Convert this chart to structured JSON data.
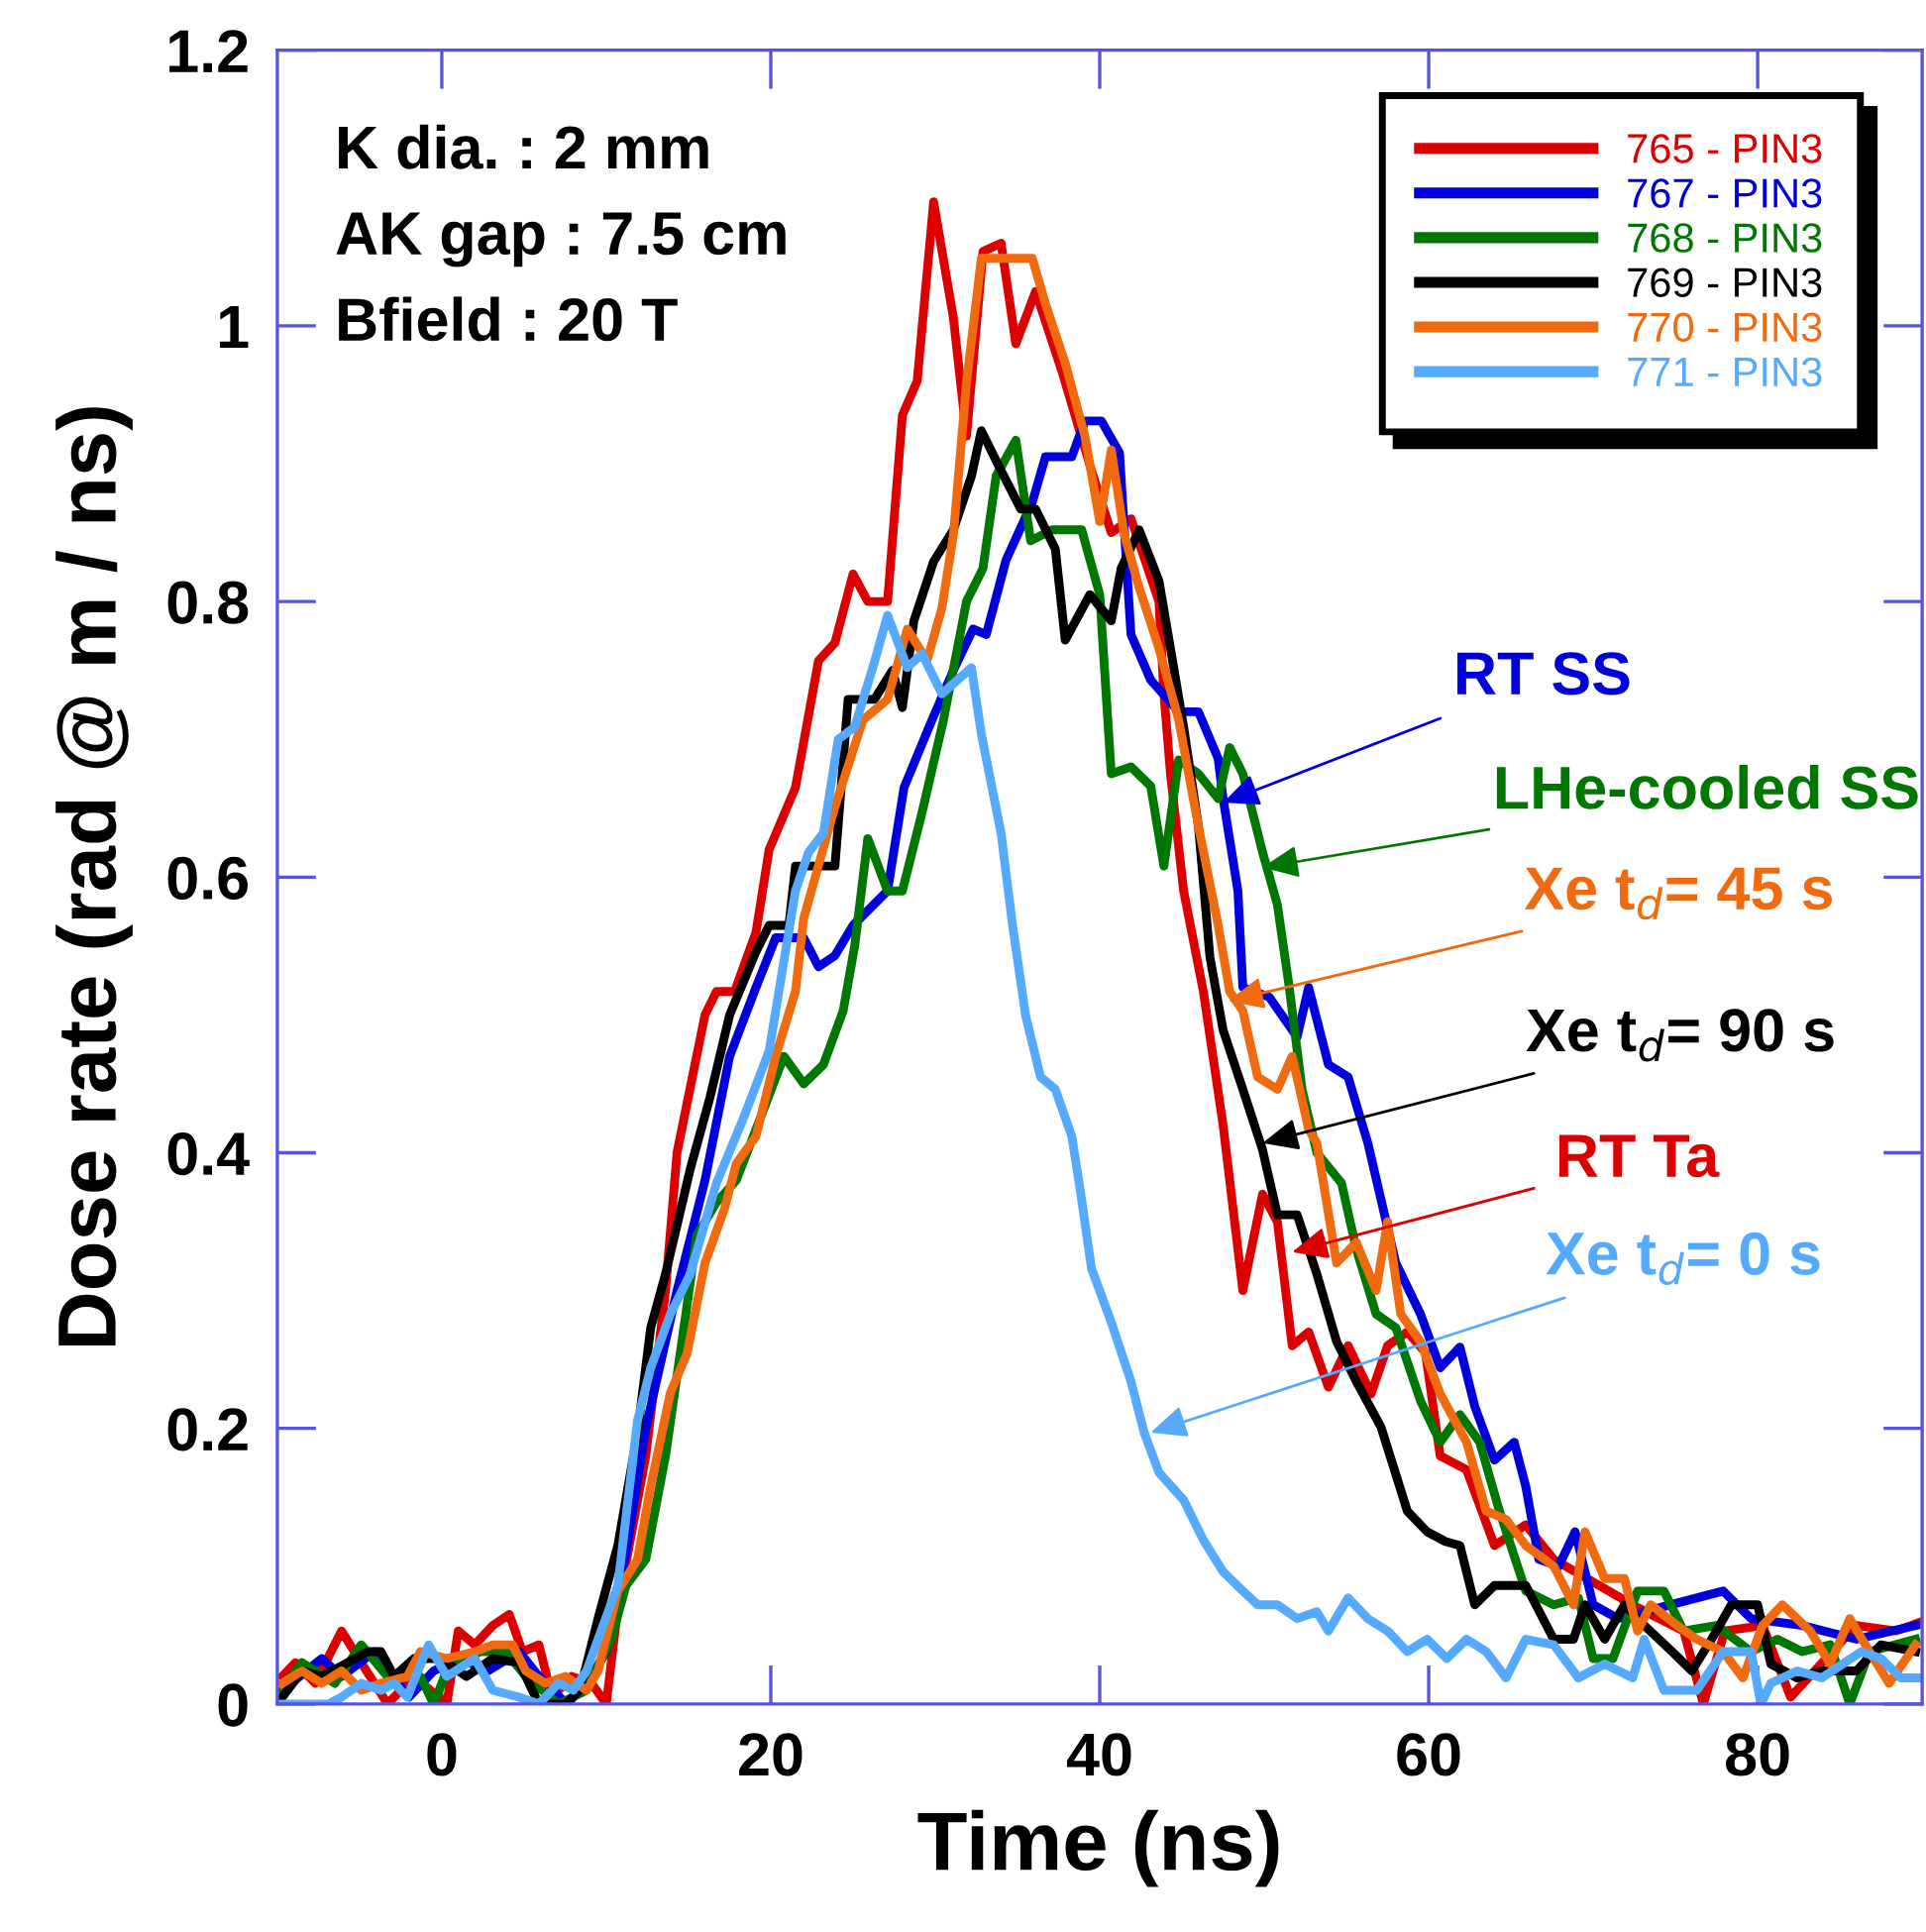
{
  "chart_data": {
    "type": "line",
    "xlabel": "Time (ns)",
    "ylabel": "Dose rate (rad @ m / ns)",
    "xlim": [
      -10,
      90
    ],
    "ylim": [
      0,
      1.2
    ],
    "xticks": [
      0,
      20,
      40,
      60,
      80
    ],
    "yticks": [
      0,
      0.2,
      0.4,
      0.6,
      0.8,
      1,
      1.2
    ],
    "grid": false,
    "legend": "top right",
    "marker": "none",
    "line_style": "solid",
    "series": [
      {
        "name": "765 - PIN3",
        "color": "#dd0000",
        "x": [
          -9.7,
          -8.9,
          -7.7,
          -6.1,
          -4.9,
          -3.3,
          -1.7,
          0.3,
          1,
          2,
          3.1,
          4.1,
          4.9,
          5.9,
          6.7,
          7.9,
          9.1,
          10,
          10.7,
          12.4,
          13.6,
          14.3,
          16,
          16.7,
          17.8,
          19.1,
          19.9,
          21.5,
          22.9,
          23.9,
          25,
          25.9,
          27.1,
          28,
          28.9,
          29.9,
          31.1,
          31.9,
          32.9,
          34,
          34.9,
          36.1,
          37.7,
          39.5,
          40.7,
          41.9,
          43.6,
          43.9,
          44.3,
          45.1,
          46.3,
          47.5,
          48.7,
          49.9,
          50.8,
          51.7,
          52.7,
          53.9,
          55.1,
          56.5,
          57.5,
          58.7,
          59.8,
          60.7,
          62.3,
          64,
          65.9,
          67.6,
          72.7,
          75.5,
          76.7,
          78,
          80.3,
          82,
          86,
          88.4,
          90
        ],
        "values": [
          0.02,
          0.03,
          0.015,
          0.053,
          0.03,
          0,
          0.02,
          0,
          0.053,
          0.043,
          0.057,
          0.065,
          0.038,
          0.043,
          0.005,
          0.02,
          0.015,
          0,
          0.07,
          0.18,
          0.3,
          0.4,
          0.5,
          0.517,
          0.517,
          0.56,
          0.62,
          0.665,
          0.757,
          0.77,
          0.82,
          0.8,
          0.8,
          0.935,
          0.96,
          1.09,
          1.006,
          0.92,
          1.054,
          1.06,
          0.987,
          1.025,
          0.967,
          0.895,
          0.85,
          0.86,
          0.8,
          0.733,
          0.675,
          0.59,
          0.517,
          0.42,
          0.3,
          0.37,
          0.35,
          0.26,
          0.27,
          0.23,
          0.26,
          0.225,
          0.26,
          0.27,
          0.255,
          0.18,
          0.17,
          0.115,
          0.13,
          0.105,
          0.07,
          0.053,
          0,
          0.053,
          0.057,
          0.005,
          0.057,
          0.053,
          0.06
        ]
      },
      {
        "name": "767 - PIN3",
        "color": "#0000dd",
        "x": [
          -9.7,
          -7.3,
          -6.1,
          -4.1,
          -2,
          -0.5,
          1.1,
          2.8,
          4.7,
          5.9,
          7.6,
          8.8,
          10,
          11.2,
          12.4,
          14.3,
          16,
          17.5,
          19.1,
          20.3,
          22,
          22.9,
          23.9,
          25,
          27.1,
          28.1,
          29.8,
          31.1,
          32.3,
          33.1,
          34.3,
          35.9,
          36.7,
          38.3,
          39.1,
          40.1,
          41.2,
          41.9,
          43.1,
          44.8,
          46,
          47.2,
          47.5,
          48.4,
          48.7,
          50.3,
          52,
          52.7,
          53.9,
          55.1,
          56.3,
          58,
          59.5,
          60.7,
          61.9,
          62.8,
          64,
          65.2,
          65.9,
          66.7,
          67.9,
          68.9,
          70,
          71.5,
          77.9,
          79.6,
          82.7,
          86,
          89.6
        ],
        "values": [
          0.01,
          0.033,
          0.02,
          0.038,
          0.005,
          0.024,
          0.033,
          0.024,
          0.038,
          0.02,
          0,
          0.015,
          0.038,
          0.11,
          0.2,
          0.3,
          0.38,
          0.47,
          0.52,
          0.556,
          0.556,
          0.535,
          0.543,
          0.565,
          0.59,
          0.665,
          0.714,
          0.75,
          0.78,
          0.776,
          0.83,
          0.872,
          0.905,
          0.905,
          0.931,
          0.931,
          0.908,
          0.776,
          0.743,
          0.72,
          0.72,
          0.686,
          0.657,
          0.59,
          0.52,
          0.513,
          0.484,
          0.52,
          0.464,
          0.455,
          0.407,
          0.32,
          0.283,
          0.244,
          0.259,
          0.216,
          0.177,
          0.19,
          0.158,
          0.105,
          0.1,
          0.125,
          0.072,
          0.062,
          0.082,
          0.062,
          0.057,
          0.047,
          0.057
        ]
      },
      {
        "name": "768 - PIN3",
        "color": "#007700",
        "x": [
          -9.7,
          -8.5,
          -6.5,
          -4.9,
          -3.3,
          -1.3,
          -0.5,
          0.3,
          2.3,
          3.9,
          5.1,
          7.1,
          8.8,
          10.3,
          11.2,
          12.4,
          13.6,
          14.8,
          15.5,
          16.7,
          17.9,
          19.1,
          20.8,
          22,
          23.2,
          24.4,
          25.1,
          25.9,
          27.1,
          28,
          29.2,
          30.5,
          31.9,
          32.9,
          33.7,
          34.9,
          35.8,
          37.1,
          38.9,
          40,
          40.7,
          41.9,
          43.1,
          43.9,
          44.8,
          46,
          47.2,
          47.9,
          48.7,
          49.9,
          50.8,
          51.5,
          52.3,
          53.2,
          54.7,
          55.6,
          56.8,
          58,
          59.5,
          60.7,
          61.9,
          63.1,
          64.3,
          65.9,
          67.6,
          69.1,
          70,
          71.2,
          72.7,
          74.3,
          75.5,
          77.5,
          79.6,
          81.2,
          82.7,
          84.4,
          85.6,
          86.8,
          89.6
        ],
        "values": [
          0.01,
          0.03,
          0.015,
          0.043,
          0.02,
          0.02,
          0,
          0.024,
          0.038,
          0.038,
          0.02,
          0,
          0.01,
          0.047,
          0.086,
          0.105,
          0.18,
          0.28,
          0.34,
          0.364,
          0.38,
          0.417,
          0.47,
          0.45,
          0.464,
          0.503,
          0.55,
          0.628,
          0.59,
          0.59,
          0.647,
          0.714,
          0.8,
          0.824,
          0.891,
          0.917,
          0.844,
          0.852,
          0.852,
          0.805,
          0.675,
          0.68,
          0.666,
          0.608,
          0.685,
          0.675,
          0.657,
          0.694,
          0.675,
          0.618,
          0.58,
          0.522,
          0.446,
          0.4,
          0.378,
          0.33,
          0.283,
          0.273,
          0.22,
          0.19,
          0.21,
          0.19,
          0.14,
          0.082,
          0.072,
          0.077,
          0.033,
          0.033,
          0.082,
          0.082,
          0.053,
          0.057,
          0.038,
          0.047,
          0.038,
          0.043,
          0,
          0.038,
          0.047
        ]
      },
      {
        "name": "769 - PIN3",
        "color": "#000000",
        "x": [
          -9.7,
          -8.5,
          -7.3,
          -4.5,
          -3.7,
          -2.9,
          -1.7,
          -0.1,
          1.5,
          3.1,
          4.7,
          5.9,
          7.5,
          8.4,
          9.5,
          10.7,
          11.9,
          12.7,
          13.6,
          15.1,
          16.3,
          17.5,
          19.1,
          19.9,
          21.1,
          21.5,
          23.9,
          24.7,
          26.3,
          27.4,
          28,
          28.7,
          29.9,
          31.1,
          32.2,
          32.8,
          34,
          35.2,
          36.1,
          37.3,
          37.9,
          39.4,
          40.7,
          41.3,
          42.4,
          43.6,
          44.3,
          45.1,
          46,
          46.7,
          47.5,
          48.7,
          49.9,
          50.8,
          52,
          53.2,
          54.4,
          55.6,
          57.1,
          58.7,
          59.9,
          61,
          61.9,
          62.8,
          64,
          65.9,
          67.6,
          68.8,
          69.5,
          70.7,
          71.9,
          73.1,
          74.8,
          76,
          77.2,
          78.4,
          80,
          80.8,
          82.4,
          83.9,
          86,
          87.5,
          89.6
        ],
        "values": [
          0.005,
          0.024,
          0.02,
          0.038,
          0.038,
          0.02,
          0.033,
          0.033,
          0.02,
          0.033,
          0.03,
          0,
          0,
          0.01,
          0.062,
          0.115,
          0.197,
          0.273,
          0.312,
          0.388,
          0.44,
          0.5,
          0.546,
          0.565,
          0.565,
          0.608,
          0.608,
          0.729,
          0.729,
          0.75,
          0.723,
          0.786,
          0.829,
          0.852,
          0.891,
          0.924,
          0.895,
          0.867,
          0.867,
          0.838,
          0.772,
          0.805,
          0.786,
          0.824,
          0.852,
          0.815,
          0.766,
          0.709,
          0.637,
          0.542,
          0.489,
          0.446,
          0.402,
          0.355,
          0.355,
          0.312,
          0.263,
          0.234,
          0.201,
          0.14,
          0.125,
          0.118,
          0.115,
          0.072,
          0.086,
          0.086,
          0.047,
          0.047,
          0.072,
          0.047,
          0.072,
          0.057,
          0.038,
          0.024,
          0.047,
          0.072,
          0.072,
          0.029,
          0.019,
          0.024,
          0.024,
          0.043,
          0.038
        ]
      },
      {
        "name": "770 - PIN3",
        "color": "#f06a10",
        "x": [
          -9.7,
          -8.5,
          -7.3,
          -6.1,
          -4.9,
          -3.7,
          -2.1,
          -1.3,
          0.3,
          2,
          3.1,
          4.3,
          5.1,
          6.3,
          7.5,
          8.8,
          9.5,
          10.7,
          11.9,
          12.7,
          13.9,
          14.9,
          16,
          17.2,
          17.9,
          19.1,
          20.3,
          21.5,
          22,
          23.9,
          25.6,
          27.1,
          28.3,
          29.5,
          30.4,
          31.1,
          31.9,
          32.8,
          35.9,
          36.7,
          37.9,
          39.1,
          40,
          40.7,
          41.5,
          42.4,
          43.6,
          44.8,
          46,
          47.2,
          47.9,
          48.7,
          49.6,
          50.8,
          51.7,
          52.7,
          53.2,
          54.4,
          55.6,
          56.8,
          57.5,
          58.3,
          59.5,
          60.7,
          62.3,
          63.5,
          64.7,
          65.9,
          67.6,
          68.8,
          69.5,
          70.7,
          71.9,
          72.7,
          73.5,
          75.1,
          76.3,
          77.9,
          79.1,
          80.3,
          81.5,
          83.2,
          84.4,
          85.6,
          86.8,
          88,
          89.6
        ],
        "values": [
          0.015,
          0.024,
          0.015,
          0.024,
          0.01,
          0.015,
          0.02,
          0.038,
          0.033,
          0.038,
          0.043,
          0.043,
          0.024,
          0.015,
          0.02,
          0.01,
          0.024,
          0.082,
          0.105,
          0.158,
          0.226,
          0.254,
          0.32,
          0.36,
          0.392,
          0.412,
          0.47,
          0.517,
          0.57,
          0.651,
          0.714,
          0.729,
          0.78,
          0.757,
          0.795,
          0.848,
          0.959,
          1.049,
          1.049,
          1.016,
          0.973,
          0.92,
          0.858,
          0.91,
          0.848,
          0.81,
          0.766,
          0.714,
          0.637,
          0.565,
          0.517,
          0.503,
          0.455,
          0.446,
          0.47,
          0.417,
          0.407,
          0.32,
          0.335,
          0.3,
          0.35,
          0.283,
          0.263,
          0.225,
          0.19,
          0.14,
          0.134,
          0.115,
          0.1,
          0.072,
          0.125,
          0.091,
          0.091,
          0.053,
          0.072,
          0.057,
          0.047,
          0.038,
          0.019,
          0.057,
          0.072,
          0.053,
          0.029,
          0.062,
          0.038,
          0.015,
          0.043
        ]
      },
      {
        "name": "771 - PIN3",
        "color": "#55aaff",
        "x": [
          -9.7,
          -6.9,
          -6.1,
          -4.9,
          -3.7,
          -2.9,
          -2.1,
          -0.8,
          0.3,
          2,
          3.1,
          4.7,
          5.9,
          7.1,
          8,
          8.8,
          9.5,
          10.7,
          11.9,
          12.7,
          13.9,
          15.1,
          16.7,
          18.4,
          19.9,
          21.5,
          22.3,
          23.2,
          24.1,
          25.1,
          26.2,
          27.1,
          28.3,
          29.2,
          30.4,
          32.2,
          32.8,
          34,
          34.7,
          35.5,
          36.4,
          37.3,
          38.3,
          38.8,
          39.5,
          40.7,
          41.9,
          42.7,
          43.6,
          45.1,
          46.3,
          47.5,
          48.7,
          49.6,
          50.8,
          52,
          53.2,
          53.9,
          55.1,
          56.3,
          57.5,
          58.7,
          59.9,
          61.1,
          62.3,
          63.5,
          64.7,
          65.9,
          67.6,
          69.1,
          70.7,
          72.4,
          73.1,
          74.3,
          76.3,
          77.9,
          79.6,
          80.2,
          80.8,
          82.4,
          83.9,
          86.3,
          87.5,
          88.7,
          90
        ],
        "values": [
          0,
          0,
          0.005,
          0.015,
          0.01,
          0.015,
          0.005,
          0.043,
          0.02,
          0.033,
          0.01,
          0.005,
          0,
          0.015,
          0.01,
          0.024,
          0.047,
          0.086,
          0.206,
          0.244,
          0.283,
          0.312,
          0.378,
          0.427,
          0.474,
          0.59,
          0.618,
          0.632,
          0.7,
          0.709,
          0.752,
          0.79,
          0.752,
          0.762,
          0.733,
          0.752,
          0.704,
          0.632,
          0.565,
          0.499,
          0.455,
          0.446,
          0.412,
          0.374,
          0.316,
          0.277,
          0.234,
          0.197,
          0.168,
          0.148,
          0.119,
          0.096,
          0.082,
          0.072,
          0.072,
          0.062,
          0.067,
          0.053,
          0.077,
          0.062,
          0.053,
          0.038,
          0.047,
          0.033,
          0.047,
          0.038,
          0.019,
          0.047,
          0.043,
          0.019,
          0.029,
          0.019,
          0.047,
          0.01,
          0.01,
          0.038,
          0.038,
          0,
          0.015,
          0.024,
          0.019,
          0.038,
          0.033,
          0.019,
          0.019
        ]
      }
    ],
    "annotations": [
      "K dia. : 2 mm",
      "AK gap : 7.5 cm",
      "Bfield : 20 T",
      {
        "text": "RT SS",
        "x": 47.5,
        "y": 0.654
      },
      {
        "text": "LHe-cooled SS",
        "x": 49.9,
        "y": 0.607
      },
      {
        "text": "Xe t$_{d}$= 45 s",
        "x": 47.8,
        "y": 0.51
      },
      {
        "text": "Xe t$_{d}$= 90 s",
        "x": 49.9,
        "y": 0.407
      },
      {
        "text": "RT Ta",
        "x": 51.7,
        "y": 0.328
      },
      {
        "text": "Xe t$_{d}$= 0 s",
        "x": 43.1,
        "y": 0.197
      }
    ]
  }
}
